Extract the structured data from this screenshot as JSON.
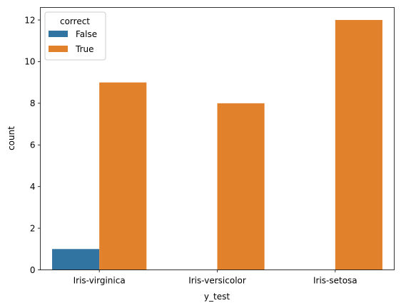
{
  "chart_data": {
    "type": "bar",
    "categories": [
      "Iris-virginica",
      "Iris-versicolor",
      "Iris-setosa"
    ],
    "series": [
      {
        "name": "False",
        "values": [
          1,
          0,
          0
        ],
        "color": "#3274a1"
      },
      {
        "name": "True",
        "values": [
          9,
          8,
          12
        ],
        "color": "#e1812c"
      }
    ],
    "xlabel": "y_test",
    "ylabel": "count",
    "ylim": [
      0,
      12.6
    ],
    "yticks": [
      "0",
      "2",
      "4",
      "6",
      "8",
      "10",
      "12"
    ],
    "legend": {
      "title": "correct",
      "position": "top-left"
    },
    "grid": false
  }
}
